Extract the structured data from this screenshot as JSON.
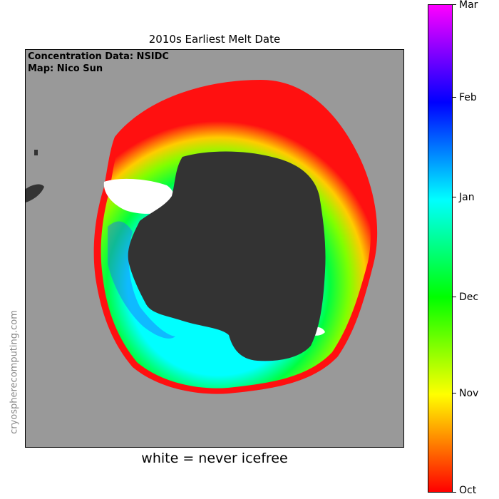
{
  "map": {
    "title": "2010s Earliest Melt Date",
    "credits": [
      "Concentration Data: NSIDC",
      "Map: Nico Sun"
    ],
    "caption": "white = never icefree",
    "watermark": "cryospherecomputing.com",
    "colors": {
      "ocean": "#999999",
      "land": "#333333",
      "never_icefree": "#ffffff"
    },
    "icons": [
      "antarctica-landmass",
      "sea-ice-ring",
      "ice-shelf-white"
    ]
  },
  "colorbar": {
    "ticks": [
      "Mar",
      "Feb",
      "Jan",
      "Dec",
      "Nov",
      "Oct"
    ],
    "gradient_colors": [
      "#ff00ff",
      "#0000ff",
      "#00ffff",
      "#00ff00",
      "#ffff00",
      "#ff0000"
    ]
  }
}
